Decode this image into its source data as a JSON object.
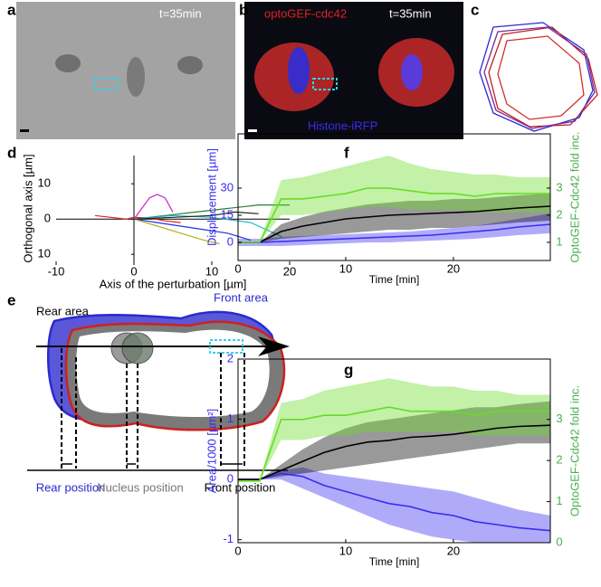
{
  "panel_a": {
    "label": "a",
    "time": "t=35min"
  },
  "panel_b": {
    "label": "b",
    "title": "optoGEF-cdc42",
    "time": "t=35min",
    "caption": "Histone-iRFP"
  },
  "panel_c": {
    "label": "c"
  },
  "panel_d": {
    "label": "d"
  },
  "panel_e": {
    "label": "e",
    "rear_area": "Rear area",
    "front_area": "Front area",
    "rear_position": "Rear position",
    "nucleus_position": "Nucleus position",
    "front_position": "Front position"
  },
  "panel_f": {
    "label": "f"
  },
  "panel_g": {
    "label": "g"
  },
  "chart_data": [
    {
      "type": "line",
      "xlabel": "Axis of the perturbation [µm]",
      "ylabel": "Orthogonal axis [µm]",
      "xlim": [
        -10,
        20
      ],
      "ylim": [
        -12,
        18
      ],
      "xticks": [
        -10,
        0,
        10,
        20
      ],
      "yticks": [
        10,
        0,
        {
          "value": -10,
          "label": "10"
        }
      ],
      "series": [
        {
          "color": "#e02020",
          "x": [
            -5,
            -3,
            -1,
            0,
            2,
            4,
            6
          ],
          "values": [
            1,
            0.5,
            0,
            0.5,
            0.3,
            -0.5,
            -1
          ]
        },
        {
          "color": "#2e7d32",
          "x": [
            0,
            4,
            8,
            12,
            16,
            20
          ],
          "values": [
            0,
            1,
            2,
            3,
            4,
            4
          ]
        },
        {
          "color": "#2233dd",
          "x": [
            0,
            3,
            6,
            9,
            12,
            15
          ],
          "values": [
            0,
            -1,
            -2,
            -3,
            -4,
            -6
          ]
        },
        {
          "color": "#cc22cc",
          "x": [
            0,
            1,
            2,
            3,
            4,
            5
          ],
          "values": [
            0,
            3,
            6,
            7,
            6,
            2
          ]
        },
        {
          "color": "#b0b020",
          "x": [
            0,
            3,
            6,
            9,
            11
          ],
          "values": [
            0,
            -2,
            -4,
            -6,
            -7
          ]
        },
        {
          "color": "#22bbcc",
          "x": [
            0,
            5,
            10,
            15,
            19
          ],
          "values": [
            0,
            1,
            0.5,
            -1,
            -5
          ]
        },
        {
          "color": "#222222",
          "x": [
            0,
            5,
            10,
            13,
            16
          ],
          "values": [
            0,
            0.5,
            1,
            2,
            1.5
          ]
        }
      ]
    },
    {
      "type": "band-line",
      "xlabel": "Time [min]",
      "ylabel": "Displacement [µm]",
      "y2label": "OptoGEF-Cdc42 fold inc.",
      "ylabel_color": "#3a2cf0",
      "y2label_color": "#4caf50",
      "xlim": [
        0,
        29
      ],
      "ylim": [
        -10,
        60
      ],
      "y2lim": [
        0.33,
        5
      ],
      "xticks": [
        0,
        10,
        20
      ],
      "yticks": [
        0,
        15,
        30
      ],
      "y2ticks": [
        1,
        2,
        3
      ],
      "x": [
        0,
        2,
        4,
        6,
        8,
        10,
        12,
        14,
        16,
        18,
        20,
        22,
        24,
        26,
        29
      ],
      "series": [
        {
          "color": "#3a2cf0",
          "values": [
            0,
            0,
            0.5,
            1,
            1.5,
            2,
            2.5,
            3,
            3.5,
            4,
            5,
            6,
            7,
            8.5,
            10
          ],
          "lower": [
            -2,
            -2,
            -2,
            -1.5,
            -1,
            -0.5,
            0,
            0,
            0.5,
            1,
            1.5,
            2,
            3,
            4,
            5
          ],
          "upper": [
            2,
            2,
            3,
            3.5,
            4,
            4.5,
            5,
            5.5,
            6,
            7,
            8,
            9,
            11,
            13,
            16
          ]
        },
        {
          "color": "#000000",
          "values": [
            0,
            0,
            6,
            9,
            11,
            13,
            14,
            15,
            15.5,
            16,
            16.5,
            17,
            18,
            19,
            20
          ],
          "lower": [
            0,
            0,
            2,
            3,
            4,
            5,
            6,
            7,
            7,
            8,
            8,
            9,
            10,
            11,
            12
          ],
          "upper": [
            0,
            0,
            10,
            14,
            17,
            19,
            21,
            22,
            23,
            23,
            24,
            24,
            25,
            26,
            27
          ]
        },
        {
          "color": "#66dd22",
          "axis": "y2",
          "values": [
            1,
            1,
            2.6,
            2.6,
            2.7,
            2.8,
            3.0,
            3.0,
            2.9,
            2.8,
            2.8,
            2.7,
            2.8,
            2.8,
            2.8
          ],
          "lower": [
            1,
            1,
            2.0,
            2.0,
            2.1,
            2.2,
            2.3,
            2.3,
            2.2,
            2.2,
            2.2,
            2.1,
            2.1,
            2.1,
            2.1
          ],
          "upper": [
            1,
            1,
            3.3,
            3.4,
            3.6,
            3.8,
            4.0,
            4.2,
            3.9,
            3.7,
            3.6,
            3.5,
            3.5,
            3.4,
            3.4
          ]
        }
      ]
    },
    {
      "type": "band-line",
      "xlabel": "Time [min]",
      "ylabel": "Area/1000 [µm²]",
      "y2label": "OptoGEF-Cdc42 fold inc.",
      "ylabel_color": "#3a2cf0",
      "y2label_color": "#4caf50",
      "xlim": [
        0,
        29
      ],
      "ylim": [
        -1.05,
        2
      ],
      "y2lim": [
        0,
        4.47
      ],
      "xticks": [
        0,
        10,
        20
      ],
      "yticks": [
        -1,
        0,
        1,
        2
      ],
      "y2ticks": [
        0,
        1,
        2,
        3
      ],
      "x": [
        0,
        2,
        4,
        6,
        8,
        10,
        12,
        14,
        16,
        18,
        20,
        22,
        24,
        26,
        29
      ],
      "series": [
        {
          "color": "#3a2cf0",
          "values": [
            0,
            0,
            0.1,
            0.05,
            -0.1,
            -0.2,
            -0.3,
            -0.4,
            -0.45,
            -0.55,
            -0.6,
            -0.7,
            -0.75,
            -0.8,
            -0.85
          ],
          "lower": [
            0,
            0,
            0,
            -0.15,
            -0.3,
            -0.45,
            -0.6,
            -0.75,
            -0.85,
            -0.95,
            -1.0,
            -1.05,
            -1.05,
            -1.05,
            -1.05
          ],
          "upper": [
            0,
            0,
            0.15,
            0.2,
            0.1,
            0.05,
            0,
            -0.05,
            -0.1,
            -0.15,
            -0.2,
            -0.3,
            -0.4,
            -0.5,
            -0.6
          ]
        },
        {
          "color": "#000000",
          "values": [
            0,
            0,
            0.15,
            0.3,
            0.45,
            0.55,
            0.62,
            0.65,
            0.7,
            0.72,
            0.75,
            0.8,
            0.85,
            0.88,
            0.9
          ],
          "lower": [
            0,
            0,
            0.05,
            0.1,
            0.15,
            0.2,
            0.25,
            0.3,
            0.35,
            0.4,
            0.45,
            0.5,
            0.55,
            0.6,
            0.6
          ],
          "upper": [
            0,
            0,
            0.25,
            0.5,
            0.7,
            0.85,
            0.95,
            1.0,
            1.05,
            1.1,
            1.15,
            1.2,
            1.2,
            1.25,
            1.3
          ]
        },
        {
          "color": "#66dd22",
          "axis": "y2",
          "values": [
            1.5,
            1.5,
            3.0,
            3.0,
            3.1,
            3.1,
            3.2,
            3.3,
            3.2,
            3.2,
            3.2,
            3.1,
            3.2,
            3.2,
            3.2
          ],
          "lower": [
            1.5,
            1.5,
            2.5,
            2.5,
            2.6,
            2.6,
            2.7,
            2.7,
            2.7,
            2.7,
            2.7,
            2.6,
            2.6,
            2.6,
            2.6
          ],
          "upper": [
            1.5,
            1.5,
            3.4,
            3.5,
            3.7,
            3.8,
            3.9,
            4.0,
            3.9,
            3.8,
            3.8,
            3.7,
            3.7,
            3.6,
            3.6
          ]
        }
      ]
    }
  ]
}
